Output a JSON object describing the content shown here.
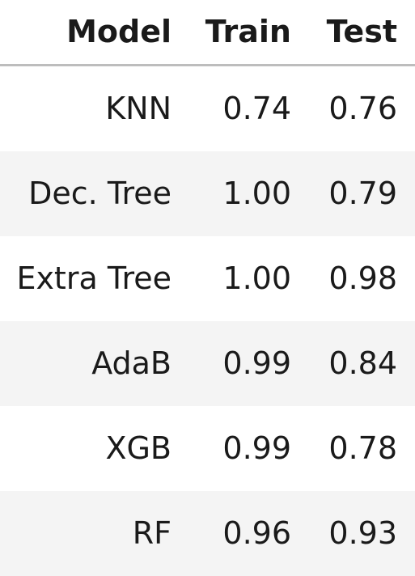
{
  "chart_data": {
    "type": "table",
    "columns": [
      "Model",
      "Train",
      "Test"
    ],
    "rows": [
      {
        "model": "KNN",
        "train": "0.74",
        "test": "0.76"
      },
      {
        "model": "Dec. Tree",
        "train": "1.00",
        "test": "0.79"
      },
      {
        "model": "Extra Tree",
        "train": "1.00",
        "test": "0.98"
      },
      {
        "model": "AdaB",
        "train": "0.99",
        "test": "0.84"
      },
      {
        "model": "XGB",
        "train": "0.99",
        "test": "0.78"
      },
      {
        "model": "RF",
        "train": "0.96",
        "test": "0.93"
      }
    ]
  },
  "colors": {
    "header_rule": "#bdbdbd",
    "stripe": "#f4f4f4",
    "text": "#1a1a1a"
  }
}
